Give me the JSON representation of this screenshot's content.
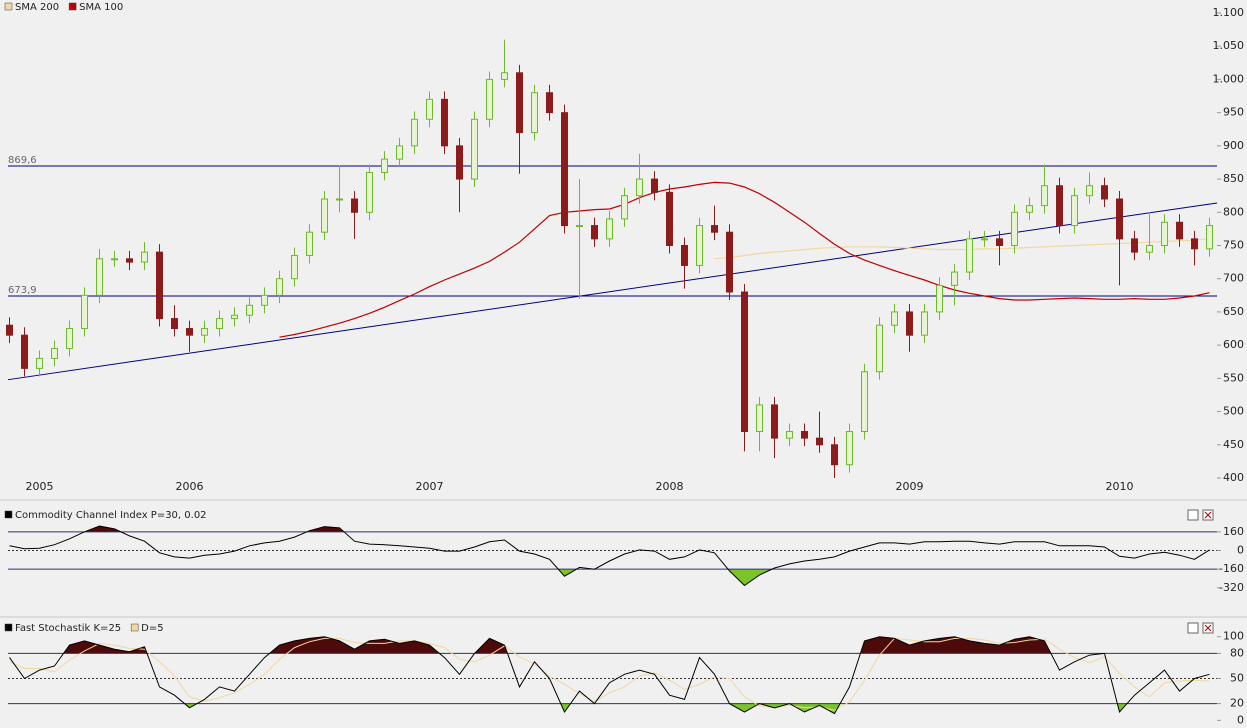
{
  "chart_data": [
    {
      "type": "candlestick",
      "categories": [
        null,
        null,
        "2005",
        null,
        null,
        null,
        null,
        null,
        null,
        null,
        null,
        null,
        "2006",
        null,
        null,
        null,
        null,
        null,
        null,
        null,
        null,
        null,
        null,
        null,
        null,
        null,
        null,
        null,
        "2007",
        null,
        null,
        null,
        null,
        null,
        null,
        null,
        null,
        null,
        null,
        null,
        null,
        null,
        null,
        null,
        "2008",
        null,
        null,
        null,
        null,
        null,
        null,
        null,
        null,
        null,
        null,
        null,
        null,
        null,
        null,
        null,
        "2009",
        null,
        null,
        null,
        null,
        null,
        null,
        null,
        null,
        null,
        null,
        null,
        null,
        null,
        "2010",
        null,
        null,
        null,
        null,
        null,
        null
      ],
      "ohlc": [
        [
          630,
          642,
          603,
          615
        ],
        [
          615,
          627,
          553,
          565
        ],
        [
          565,
          592,
          553,
          580
        ],
        [
          580,
          607,
          568,
          595
        ],
        [
          595,
          637,
          583,
          625
        ],
        [
          625,
          687,
          613,
          675
        ],
        [
          675,
          745,
          663,
          730
        ],
        [
          730,
          742,
          718,
          730
        ],
        [
          730,
          742,
          713,
          725
        ],
        [
          725,
          755,
          713,
          740
        ],
        [
          740,
          752,
          628,
          640
        ],
        [
          640,
          660,
          613,
          625
        ],
        [
          625,
          637,
          590,
          615
        ],
        [
          615,
          637,
          603,
          625
        ],
        [
          625,
          652,
          613,
          640
        ],
        [
          640,
          657,
          628,
          645
        ],
        [
          645,
          672,
          633,
          660
        ],
        [
          660,
          687,
          648,
          675
        ],
        [
          675,
          712,
          663,
          700
        ],
        [
          700,
          747,
          688,
          735
        ],
        [
          735,
          782,
          723,
          770
        ],
        [
          770,
          832,
          758,
          820
        ],
        [
          820,
          870,
          800,
          820
        ],
        [
          820,
          832,
          760,
          800
        ],
        [
          800,
          872,
          788,
          860
        ],
        [
          860,
          892,
          848,
          880
        ],
        [
          880,
          912,
          868,
          900
        ],
        [
          900,
          952,
          888,
          940
        ],
        [
          940,
          982,
          928,
          970
        ],
        [
          970,
          982,
          888,
          900
        ],
        [
          900,
          912,
          800,
          850
        ],
        [
          850,
          952,
          838,
          940
        ],
        [
          940,
          1012,
          928,
          1000
        ],
        [
          1000,
          1060,
          988,
          1010
        ],
        [
          1010,
          1022,
          858,
          920
        ],
        [
          920,
          992,
          908,
          980
        ],
        [
          980,
          992,
          938,
          950
        ],
        [
          950,
          962,
          768,
          780
        ],
        [
          780,
          850,
          670,
          780
        ],
        [
          780,
          792,
          748,
          760
        ],
        [
          760,
          802,
          748,
          790
        ],
        [
          790,
          837,
          778,
          825
        ],
        [
          825,
          888,
          813,
          850
        ],
        [
          850,
          862,
          818,
          830
        ],
        [
          830,
          842,
          738,
          750
        ],
        [
          750,
          762,
          685,
          720
        ],
        [
          720,
          792,
          708,
          780
        ],
        [
          780,
          810,
          758,
          770
        ],
        [
          770,
          782,
          668,
          680
        ],
        [
          680,
          692,
          440,
          470
        ],
        [
          470,
          522,
          440,
          510
        ],
        [
          510,
          522,
          430,
          460
        ],
        [
          460,
          482,
          448,
          470
        ],
        [
          470,
          482,
          448,
          460
        ],
        [
          460,
          500,
          438,
          450
        ],
        [
          450,
          462,
          400,
          420
        ],
        [
          420,
          482,
          408,
          470
        ],
        [
          470,
          572,
          458,
          560
        ],
        [
          560,
          642,
          548,
          630
        ],
        [
          630,
          662,
          618,
          650
        ],
        [
          650,
          662,
          590,
          615
        ],
        [
          615,
          662,
          603,
          650
        ],
        [
          650,
          702,
          638,
          690
        ],
        [
          690,
          722,
          660,
          710
        ],
        [
          710,
          772,
          698,
          760
        ],
        [
          760,
          772,
          748,
          760
        ],
        [
          760,
          772,
          720,
          750
        ],
        [
          750,
          812,
          738,
          800
        ],
        [
          800,
          822,
          788,
          810
        ],
        [
          810,
          872,
          798,
          840
        ],
        [
          840,
          852,
          768,
          780
        ],
        [
          780,
          837,
          768,
          825
        ],
        [
          825,
          860,
          813,
          840
        ],
        [
          840,
          852,
          808,
          820
        ],
        [
          820,
          832,
          690,
          760
        ],
        [
          760,
          772,
          728,
          740
        ],
        [
          740,
          800,
          728,
          750
        ],
        [
          750,
          797,
          738,
          785
        ],
        [
          785,
          797,
          748,
          760
        ],
        [
          760,
          772,
          720,
          745
        ],
        [
          745,
          792,
          733,
          780
        ]
      ],
      "up_color": "#6fb92c",
      "down_color": "#8c1c1c",
      "ylim": [
        400,
        1100
      ],
      "yticks": [
        400,
        450,
        500,
        550,
        600,
        650,
        700,
        750,
        800,
        850,
        900,
        950,
        {
          "value": 1000,
          "label": "1.000"
        },
        {
          "value": 1050,
          "label": "1.050"
        },
        {
          "value": 1100,
          "label": "1.100"
        }
      ],
      "series": [
        {
          "name": "SMA 200",
          "color": "#f0d8a0",
          "values": [
            null,
            null,
            null,
            null,
            null,
            null,
            null,
            null,
            null,
            null,
            null,
            null,
            null,
            null,
            null,
            null,
            null,
            null,
            null,
            null,
            null,
            null,
            null,
            null,
            null,
            null,
            null,
            null,
            null,
            null,
            null,
            null,
            null,
            null,
            null,
            null,
            null,
            null,
            null,
            null,
            null,
            null,
            null,
            null,
            null,
            null,
            null,
            730,
            732,
            735,
            738,
            740,
            742,
            744,
            746,
            747,
            748,
            748,
            748,
            747,
            746,
            745,
            744,
            744,
            744,
            745,
            745,
            746,
            747,
            748,
            749,
            750,
            751,
            752,
            753,
            754,
            755,
            756,
            757,
            758,
            760
          ]
        },
        {
          "name": "SMA 100",
          "color": "#c00000",
          "values": [
            null,
            null,
            null,
            null,
            null,
            null,
            null,
            null,
            null,
            null,
            null,
            null,
            null,
            null,
            null,
            null,
            null,
            null,
            612,
            616,
            621,
            627,
            633,
            640,
            648,
            657,
            667,
            677,
            688,
            698,
            707,
            716,
            726,
            740,
            755,
            775,
            795,
            800,
            802,
            804,
            805,
            812,
            822,
            830,
            835,
            838,
            842,
            845,
            844,
            838,
            828,
            815,
            800,
            785,
            768,
            752,
            738,
            728,
            720,
            712,
            705,
            698,
            690,
            683,
            678,
            674,
            670,
            668,
            668,
            669,
            670,
            671,
            670,
            669,
            669,
            670,
            669,
            669,
            671,
            674,
            679
          ]
        }
      ],
      "levels": [
        {
          "value": 869.6,
          "label": "869,6"
        },
        {
          "value": 673.9,
          "label": "673,9"
        }
      ],
      "level_color": "#000080",
      "trend_line": [
        548,
        814
      ]
    },
    {
      "type": "line",
      "series": [
        {
          "name": "Commodity Channel Index P=30, 0.02",
          "color": "#000000",
          "values": [
            40,
            15,
            20,
            50,
            100,
            160,
            210,
            185,
            125,
            80,
            -20,
            -55,
            -65,
            -40,
            -30,
            -5,
            40,
            65,
            80,
            115,
            170,
            205,
            195,
            80,
            55,
            50,
            40,
            30,
            20,
            -5,
            -5,
            30,
            75,
            90,
            -5,
            -30,
            -75,
            -220,
            -145,
            -160,
            -90,
            -30,
            5,
            -5,
            -75,
            -55,
            5,
            -20,
            -175,
            -300,
            -210,
            -150,
            -115,
            -90,
            -75,
            -55,
            -5,
            30,
            65,
            65,
            55,
            75,
            75,
            80,
            80,
            65,
            55,
            75,
            75,
            75,
            40,
            40,
            40,
            30,
            -50,
            -65,
            -30,
            -15,
            -40,
            -75,
            5
          ]
        }
      ],
      "ylim": [
        -510,
        330
      ],
      "yticks": [
        -320,
        -160,
        0,
        160
      ],
      "bands": [
        -160,
        160
      ],
      "midline": 0,
      "fill_above": "#4d0a0a",
      "fill_below": "#7cc42a"
    },
    {
      "type": "line",
      "series": [
        {
          "name": "Fast Stochastik K=25",
          "color": "#000000",
          "values": [
            75,
            50,
            60,
            65,
            90,
            95,
            90,
            85,
            82,
            88,
            40,
            30,
            15,
            25,
            40,
            35,
            55,
            75,
            90,
            95,
            98,
            100,
            95,
            85,
            95,
            97,
            92,
            95,
            90,
            75,
            55,
            80,
            98,
            90,
            40,
            70,
            50,
            10,
            35,
            20,
            45,
            55,
            60,
            55,
            30,
            25,
            75,
            55,
            20,
            10,
            20,
            15,
            20,
            10,
            18,
            8,
            40,
            95,
            100,
            98,
            90,
            95,
            98,
            100,
            95,
            92,
            90,
            97,
            100,
            95,
            60,
            70,
            78,
            80,
            10,
            30,
            45,
            60,
            35,
            50,
            55
          ]
        },
        {
          "name": "D=5",
          "color": "#f0d8a0",
          "values": [
            70,
            62,
            62,
            58,
            72,
            83,
            92,
            90,
            86,
            85,
            70,
            53,
            28,
            23,
            27,
            33,
            43,
            55,
            73,
            87,
            94,
            98,
            98,
            93,
            92,
            92,
            95,
            95,
            92,
            87,
            73,
            70,
            78,
            89,
            76,
            67,
            53,
            43,
            32,
            22,
            33,
            40,
            53,
            57,
            48,
            37,
            43,
            52,
            50,
            28,
            17,
            15,
            18,
            15,
            16,
            12,
            22,
            48,
            78,
            98,
            96,
            94,
            94,
            98,
            98,
            96,
            92,
            93,
            96,
            97,
            85,
            75,
            69,
            76,
            56,
            40,
            28,
            45,
            47,
            48,
            47
          ]
        }
      ],
      "ylim": [
        -2,
        108
      ],
      "yticks": [
        0,
        20,
        50,
        80,
        100
      ],
      "bands": [
        20,
        80
      ],
      "midline": 50,
      "fill_above": "#4d0a0a",
      "fill_below": "#7cc42a"
    }
  ]
}
